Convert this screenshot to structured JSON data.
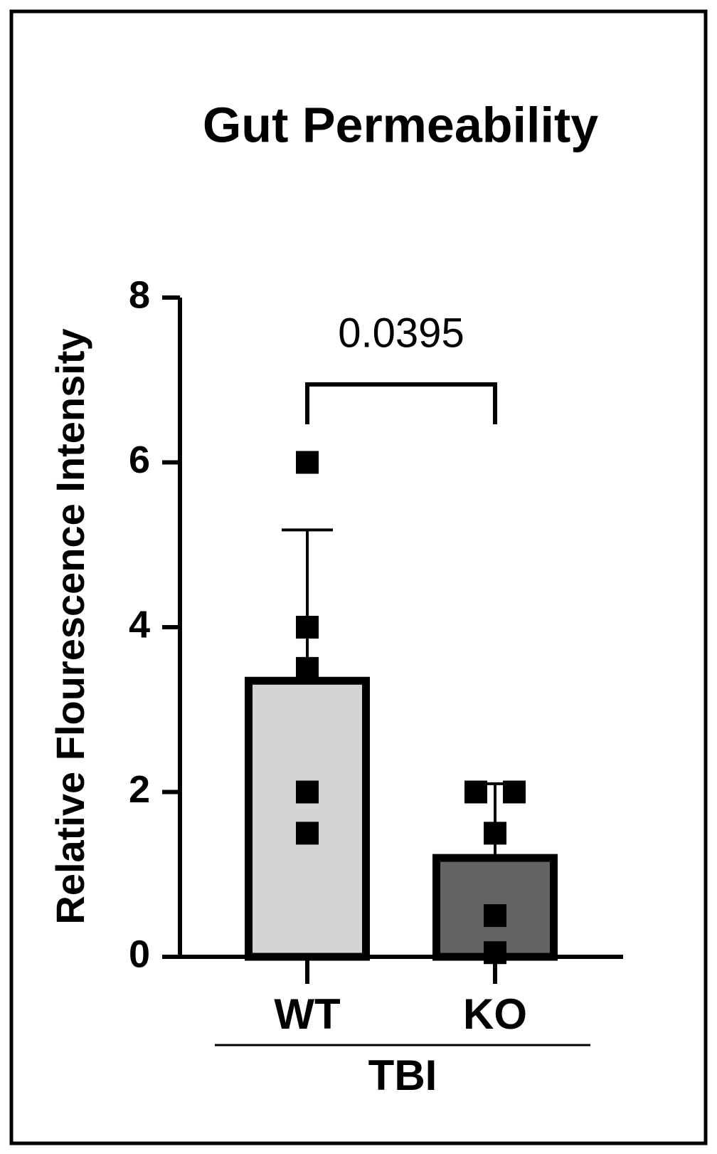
{
  "chart_data": {
    "type": "bar",
    "title": "Gut Permeability",
    "ylabel": "Relative Flourescence Intensity",
    "categories": [
      "WT",
      "KO"
    ],
    "group_label": "TBI",
    "values": [
      3.35,
      1.2
    ],
    "errors": [
      1.83,
      0.9
    ],
    "colors": [
      "#d4d4d4",
      "#636363"
    ],
    "points": [
      [
        6,
        4,
        3.5,
        2,
        1.5
      ],
      [
        2,
        2,
        1.5,
        0.5,
        0.05
      ]
    ],
    "annotation": "0.0395",
    "ylim": [
      0,
      8
    ],
    "yticks": [
      0,
      2,
      4,
      6,
      8
    ]
  }
}
